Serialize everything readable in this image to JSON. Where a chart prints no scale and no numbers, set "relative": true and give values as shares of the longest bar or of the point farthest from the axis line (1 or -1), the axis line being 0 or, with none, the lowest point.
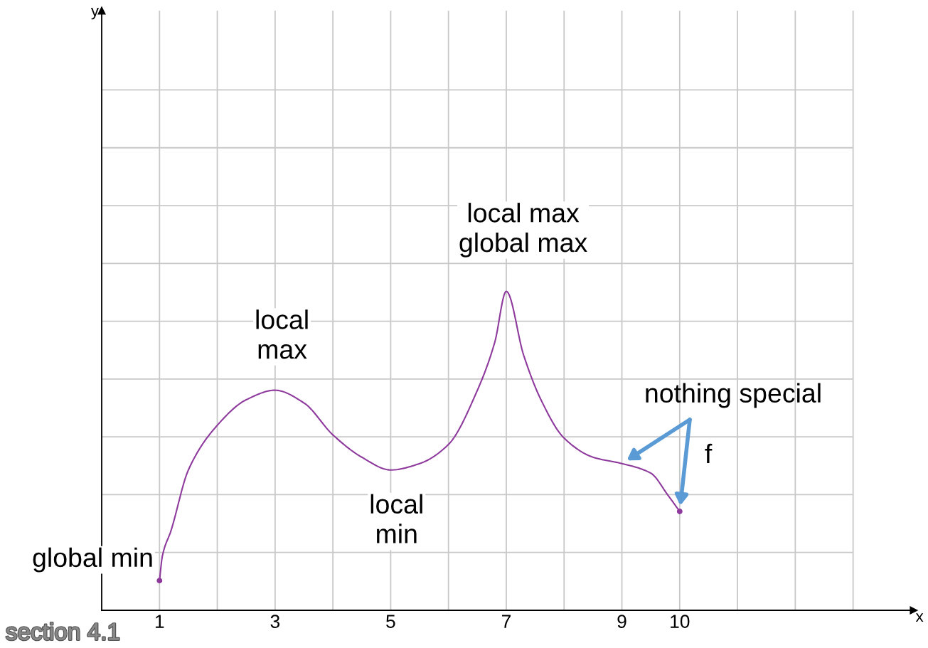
{
  "chart_data": {
    "type": "line",
    "relative": true,
    "xlabel": "x",
    "xlim": [
      0,
      14.05
    ],
    "xticks": [
      {
        "value": 0,
        "label": null
      },
      1,
      {
        "value": 2,
        "label": null
      },
      3,
      {
        "value": 4,
        "label": null
      },
      5,
      {
        "value": 6,
        "label": null
      },
      7,
      {
        "value": 8,
        "label": null
      },
      9,
      10,
      {
        "value": 11,
        "label": null
      },
      {
        "value": 12,
        "label": null
      },
      {
        "value": 13,
        "label": null
      }
    ],
    "grid": true,
    "marker": "none",
    "line_style": "solid",
    "series": [
      {
        "name": "f",
        "color": "#8e3a9d",
        "x": [
          1,
          1.05,
          1.2,
          1.5,
          2,
          2.5,
          3,
          3.5,
          4,
          4.5,
          5,
          5.5,
          6,
          6.5,
          6.8,
          7,
          7.3,
          7.6,
          8,
          8.5,
          9,
          9.5,
          9.8,
          10
        ],
        "values": [
          0.093,
          0.17,
          0.25,
          0.44,
          0.58,
          0.66,
          0.69,
          0.65,
          0.55,
          0.48,
          0.44,
          0.46,
          0.52,
          0.69,
          0.84,
          1.0,
          0.8,
          0.66,
          0.54,
          0.48,
          0.46,
          0.43,
          0.36,
          0.31
        ]
      },
      {
        "type": "scatter",
        "color": "#8e3a9d",
        "marker": "circle",
        "x": [
          1,
          10
        ],
        "values": [
          0.093,
          0.31
        ]
      }
    ],
    "annotations": [
      {
        "text": "global min",
        "x": 1,
        "y": 0.093
      },
      {
        "text": "local\nmax",
        "x": 3,
        "y": 0.69
      },
      {
        "text": "local\nmin",
        "x": 5,
        "y": 0.44
      },
      {
        "text": "local max\nglobal max",
        "x": 7,
        "y": 1.0
      },
      "nothing special",
      "section 4.1",
      "y"
    ]
  }
}
